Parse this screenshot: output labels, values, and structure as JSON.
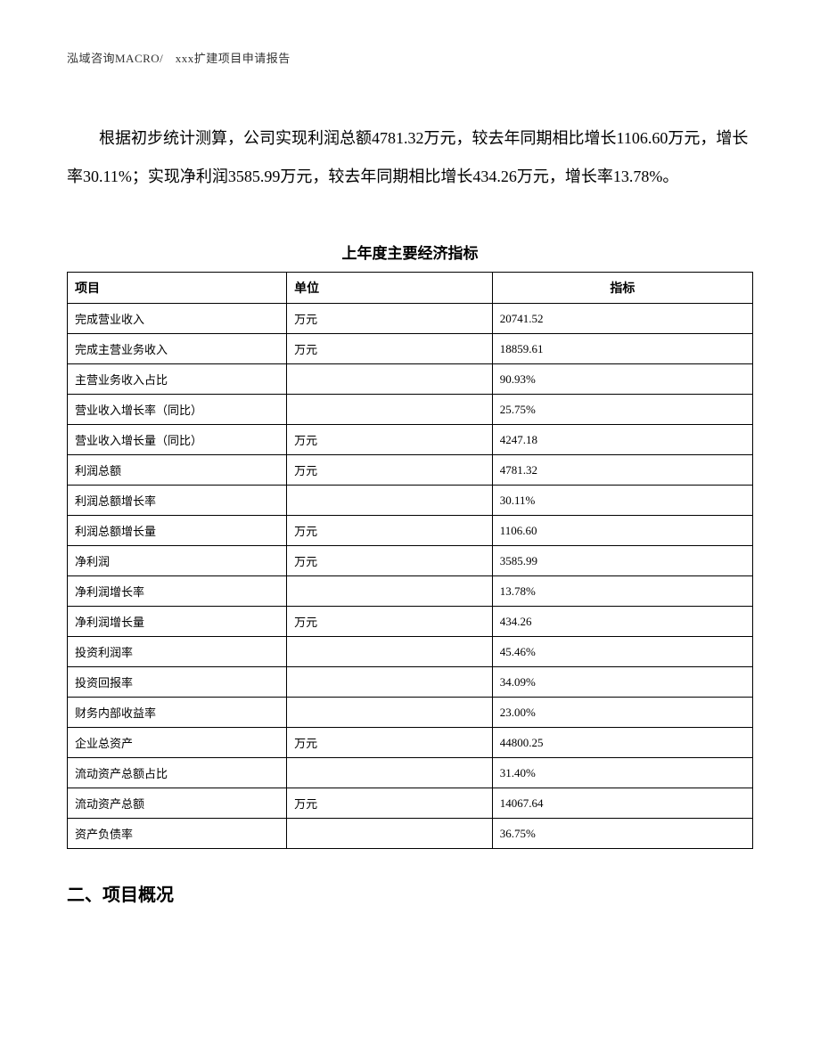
{
  "header": {
    "text": "泓域咨询MACRO/　xxx扩建项目申请报告"
  },
  "paragraph": {
    "text": "根据初步统计测算，公司实现利润总额4781.32万元，较去年同期相比增长1106.60万元，增长率30.11%；实现净利润3585.99万元，较去年同期相比增长434.26万元，增长率13.78%。"
  },
  "table": {
    "title": "上年度主要经济指标",
    "columns": {
      "item": "项目",
      "unit": "单位",
      "indicator": "指标"
    },
    "rows": [
      {
        "item": "完成营业收入",
        "unit": "万元",
        "value": "20741.52"
      },
      {
        "item": "完成主营业务收入",
        "unit": "万元",
        "value": "18859.61"
      },
      {
        "item": "主营业务收入占比",
        "unit": "",
        "value": "90.93%"
      },
      {
        "item": "营业收入增长率（同比）",
        "unit": "",
        "value": "25.75%"
      },
      {
        "item": "营业收入增长量（同比）",
        "unit": "万元",
        "value": "4247.18"
      },
      {
        "item": "利润总额",
        "unit": "万元",
        "value": "4781.32"
      },
      {
        "item": "利润总额增长率",
        "unit": "",
        "value": "30.11%"
      },
      {
        "item": "利润总额增长量",
        "unit": "万元",
        "value": "1106.60"
      },
      {
        "item": "净利润",
        "unit": "万元",
        "value": "3585.99"
      },
      {
        "item": "净利润增长率",
        "unit": "",
        "value": "13.78%"
      },
      {
        "item": "净利润增长量",
        "unit": "万元",
        "value": "434.26"
      },
      {
        "item": "投资利润率",
        "unit": "",
        "value": "45.46%"
      },
      {
        "item": "投资回报率",
        "unit": "",
        "value": "34.09%"
      },
      {
        "item": "财务内部收益率",
        "unit": "",
        "value": "23.00%"
      },
      {
        "item": "企业总资产",
        "unit": "万元",
        "value": "44800.25"
      },
      {
        "item": "流动资产总额占比",
        "unit": "",
        "value": "31.40%"
      },
      {
        "item": "流动资产总额",
        "unit": "万元",
        "value": "14067.64"
      },
      {
        "item": "资产负债率",
        "unit": "",
        "value": "36.75%"
      }
    ]
  },
  "section": {
    "heading": "二、项目概况"
  }
}
